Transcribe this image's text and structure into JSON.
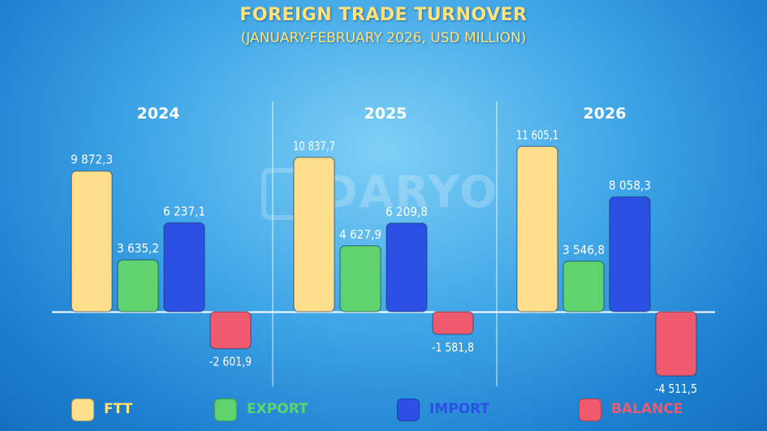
{
  "header": {
    "title": "FOREIGN TRADE TURNOVER",
    "subtitle": "(JANUARY-FEBRUARY 2026, USD MILLION)"
  },
  "watermark": {
    "text": "DARYO"
  },
  "chart_data": {
    "type": "bar",
    "categories": [
      "2024",
      "2025",
      "2026"
    ],
    "series": [
      {
        "name": "FTT",
        "color": "#ffdf8c",
        "values": [
          9872.3,
          10837.7,
          11605.1
        ],
        "labels": [
          "9 872,3",
          "10 837,7",
          "11 605,1"
        ]
      },
      {
        "name": "EXPORT",
        "color": "#5fd36d",
        "values": [
          3635.2,
          4627.9,
          3546.8
        ],
        "labels": [
          "3 635,2",
          "4 627,9",
          "3 546,8"
        ]
      },
      {
        "name": "IMPORT",
        "color": "#2b50e3",
        "values": [
          6237.1,
          6209.8,
          8058.3
        ],
        "labels": [
          "6 237,1",
          "6 209,8",
          "8 058,3"
        ]
      },
      {
        "name": "BALANCE",
        "color": "#ef5a6e",
        "values": [
          -2601.9,
          -1581.8,
          -4511.5
        ],
        "labels": [
          "-2 601,9",
          "-1 581,8",
          "-4 511,5"
        ]
      }
    ],
    "legend": {
      "position": "bottom"
    },
    "grid": false
  },
  "legend": {
    "items": [
      {
        "label": "FTT",
        "color": "#ffdf8c",
        "text_color": "#ffe27a"
      },
      {
        "label": "EXPORT",
        "color": "#5fd36d",
        "text_color": "#5fd36d"
      },
      {
        "label": "IMPORT",
        "color": "#2b50e3",
        "text_color": "#2b50e3"
      },
      {
        "label": "BALANCE",
        "color": "#ef5a6e",
        "text_color": "#ef5a6e"
      }
    ]
  }
}
